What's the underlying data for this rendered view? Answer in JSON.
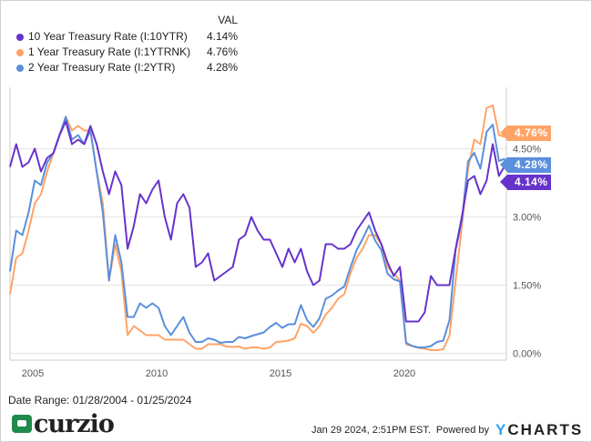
{
  "legend": {
    "header": "VAL",
    "items": [
      {
        "name": "10 Year Treasury Rate (I:10YTR)",
        "value": "4.14%",
        "color": "#6633cc"
      },
      {
        "name": "1 Year Treasury Rate (I:1YTRNK)",
        "value": "4.76%",
        "color": "#ffa366"
      },
      {
        "name": "2 Year Treasury Rate (I:2YTR)",
        "value": "4.28%",
        "color": "#5a8fdc"
      }
    ]
  },
  "chart_data": {
    "type": "line",
    "x_start": 2004.08,
    "x_end": 2024.07,
    "xlim": [
      2004.08,
      2024.12
    ],
    "ylim": [
      -0.15,
      5.85
    ],
    "x_ticks": [
      "2005",
      "2010",
      "2015",
      "2020"
    ],
    "y_ticks": [
      {
        "v": 0,
        "label": "0.00%"
      },
      {
        "v": 1.5,
        "label": "1.50%"
      },
      {
        "v": 3,
        "label": "3.00%"
      },
      {
        "v": 4.5,
        "label": "4.50%"
      }
    ],
    "grid": true,
    "series": [
      {
        "name": "10 Year Treasury Rate (I:10YTR)",
        "color": "#6633cc",
        "last": "4.14%",
        "values": [
          4.1,
          4.6,
          4.1,
          4.2,
          4.5,
          4.0,
          4.3,
          4.4,
          4.8,
          5.1,
          4.6,
          4.7,
          4.6,
          5.0,
          4.6,
          4.0,
          3.5,
          4.0,
          3.7,
          2.3,
          2.8,
          3.5,
          3.3,
          3.6,
          3.8,
          3.0,
          2.5,
          3.3,
          3.5,
          3.2,
          1.9,
          2.0,
          2.2,
          1.6,
          1.7,
          1.8,
          1.9,
          2.5,
          2.6,
          3.0,
          2.7,
          2.5,
          2.5,
          2.2,
          1.9,
          2.3,
          2.0,
          2.3,
          1.8,
          1.5,
          1.6,
          2.4,
          2.4,
          2.3,
          2.3,
          2.4,
          2.7,
          2.9,
          3.1,
          2.7,
          2.4,
          2.0,
          1.7,
          1.9,
          0.7,
          0.7,
          0.7,
          0.9,
          1.7,
          1.5,
          1.5,
          1.5,
          2.3,
          3.0,
          3.8,
          3.9,
          3.5,
          3.8,
          4.6,
          3.9,
          4.14
        ]
      },
      {
        "name": "1 Year Treasury Rate (I:1YTRNK)",
        "color": "#ffa366",
        "last": "4.76%",
        "values": [
          1.3,
          2.1,
          2.2,
          2.7,
          3.3,
          3.5,
          4.0,
          4.4,
          4.8,
          5.2,
          4.9,
          5.0,
          4.9,
          4.9,
          4.0,
          3.3,
          1.6,
          2.4,
          1.8,
          0.4,
          0.6,
          0.5,
          0.4,
          0.4,
          0.4,
          0.3,
          0.3,
          0.3,
          0.3,
          0.2,
          0.1,
          0.1,
          0.2,
          0.2,
          0.2,
          0.15,
          0.14,
          0.15,
          0.1,
          0.13,
          0.13,
          0.1,
          0.13,
          0.25,
          0.26,
          0.28,
          0.33,
          0.65,
          0.6,
          0.45,
          0.6,
          0.85,
          1.0,
          1.2,
          1.3,
          1.76,
          2.1,
          2.3,
          2.6,
          2.6,
          2.4,
          1.9,
          1.75,
          1.6,
          0.2,
          0.16,
          0.12,
          0.1,
          0.07,
          0.07,
          0.09,
          0.39,
          1.6,
          2.8,
          4.05,
          4.7,
          4.6,
          5.4,
          5.45,
          4.8,
          4.76
        ]
      },
      {
        "name": "2 Year Treasury Rate (I:2YTR)",
        "color": "#5a8fdc",
        "last": "4.28%",
        "values": [
          1.8,
          2.7,
          2.6,
          3.1,
          3.8,
          3.7,
          4.2,
          4.4,
          4.8,
          5.2,
          4.7,
          4.8,
          4.6,
          4.9,
          4.0,
          3.1,
          1.6,
          2.6,
          2.0,
          0.8,
          0.8,
          1.1,
          1.0,
          1.1,
          1.0,
          0.6,
          0.4,
          0.6,
          0.8,
          0.45,
          0.25,
          0.25,
          0.33,
          0.3,
          0.23,
          0.25,
          0.25,
          0.36,
          0.33,
          0.38,
          0.42,
          0.46,
          0.58,
          0.67,
          0.56,
          0.64,
          0.64,
          1.06,
          0.73,
          0.58,
          0.77,
          1.2,
          1.27,
          1.38,
          1.47,
          1.89,
          2.27,
          2.52,
          2.81,
          2.48,
          2.27,
          1.75,
          1.63,
          1.58,
          0.23,
          0.16,
          0.13,
          0.13,
          0.16,
          0.25,
          0.28,
          0.73,
          2.28,
          2.92,
          4.22,
          4.41,
          4.06,
          4.87,
          5.03,
          4.23,
          4.28
        ]
      }
    ]
  },
  "footer": {
    "date_range": "Date Range: 01/28/2004 - 01/25/2024",
    "logo": "curzio",
    "timestamp": "Jan 29 2024, 2:51PM EST.",
    "powered_by": "Powered by",
    "ycharts_y": "Y",
    "ycharts_rest": "CHARTS"
  }
}
